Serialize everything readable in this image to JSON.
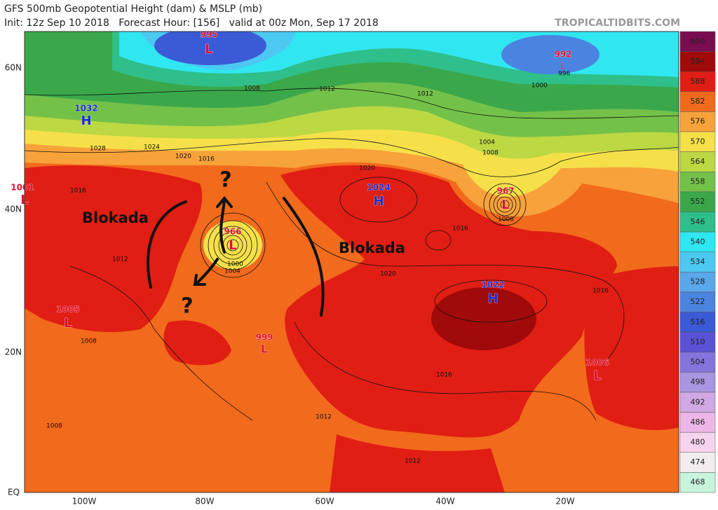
{
  "header": {
    "title": "GFS 500mb Geopotential Height (dam) & MSLP (mb)",
    "subtitle": "Init: 12z Sep 10 2018   Forecast Hour: [156]   valid at 00z Mon, Sep 17 2018",
    "site": "TROPICALTIDBITS.COM"
  },
  "colorbar": {
    "levels": [
      {
        "value": 600,
        "color": "#7a0c52"
      },
      {
        "value": 594,
        "color": "#a00a0a"
      },
      {
        "value": 588,
        "color": "#e01e14"
      },
      {
        "value": 582,
        "color": "#f26a1c"
      },
      {
        "value": 576,
        "color": "#f7a23a"
      },
      {
        "value": 570,
        "color": "#f5e04a"
      },
      {
        "value": 564,
        "color": "#bcd843"
      },
      {
        "value": 558,
        "color": "#74c14a"
      },
      {
        "value": 552,
        "color": "#3aa84a"
      },
      {
        "value": 546,
        "color": "#2fbf8a"
      },
      {
        "value": 540,
        "color": "#30e6f0"
      },
      {
        "value": 534,
        "color": "#4cc8f2"
      },
      {
        "value": 528,
        "color": "#5aa8ec"
      },
      {
        "value": 522,
        "color": "#4a84e0"
      },
      {
        "value": 516,
        "color": "#3a5ad6"
      },
      {
        "value": 510,
        "color": "#5a52d6"
      },
      {
        "value": 504,
        "color": "#8474dc"
      },
      {
        "value": 498,
        "color": "#a896e2"
      },
      {
        "value": 492,
        "color": "#d0a8e4"
      },
      {
        "value": 486,
        "color": "#ecb6e6"
      },
      {
        "value": 480,
        "color": "#f6d4ee"
      },
      {
        "value": 474,
        "color": "#f2eef0"
      },
      {
        "value": 468,
        "color": "#c8f4dc"
      }
    ]
  },
  "axes": {
    "lat": [
      "60N",
      "40N",
      "20N",
      "EQ"
    ],
    "lon": [
      "100W",
      "80W",
      "60W",
      "40W",
      "20W"
    ]
  },
  "centers": [
    {
      "value": 995,
      "letter": "L"
    },
    {
      "value": 992,
      "letter": "L"
    },
    {
      "value": 1032,
      "letter": "H"
    },
    {
      "value": 1001,
      "letter": "L"
    },
    {
      "value": 1024,
      "letter": "H"
    },
    {
      "value": 967,
      "letter": "L"
    },
    {
      "value": 966,
      "letter": "L"
    },
    {
      "value": 1022,
      "letter": "H"
    },
    {
      "value": 1005,
      "letter": "L"
    },
    {
      "value": 999,
      "letter": "L"
    },
    {
      "value": 1006,
      "letter": "L"
    }
  ],
  "isobar_labels": [
    1008,
    1012,
    1000,
    1028,
    1024,
    1020,
    1016,
    1016,
    1020,
    1012,
    1004,
    1008,
    1008,
    1000,
    1004,
    1016,
    1020,
    1016,
    1016,
    1012,
    1008,
    1012,
    1012,
    1008,
    996
  ],
  "annotations": [
    "Blokada",
    "Blokada",
    "?",
    "?"
  ]
}
